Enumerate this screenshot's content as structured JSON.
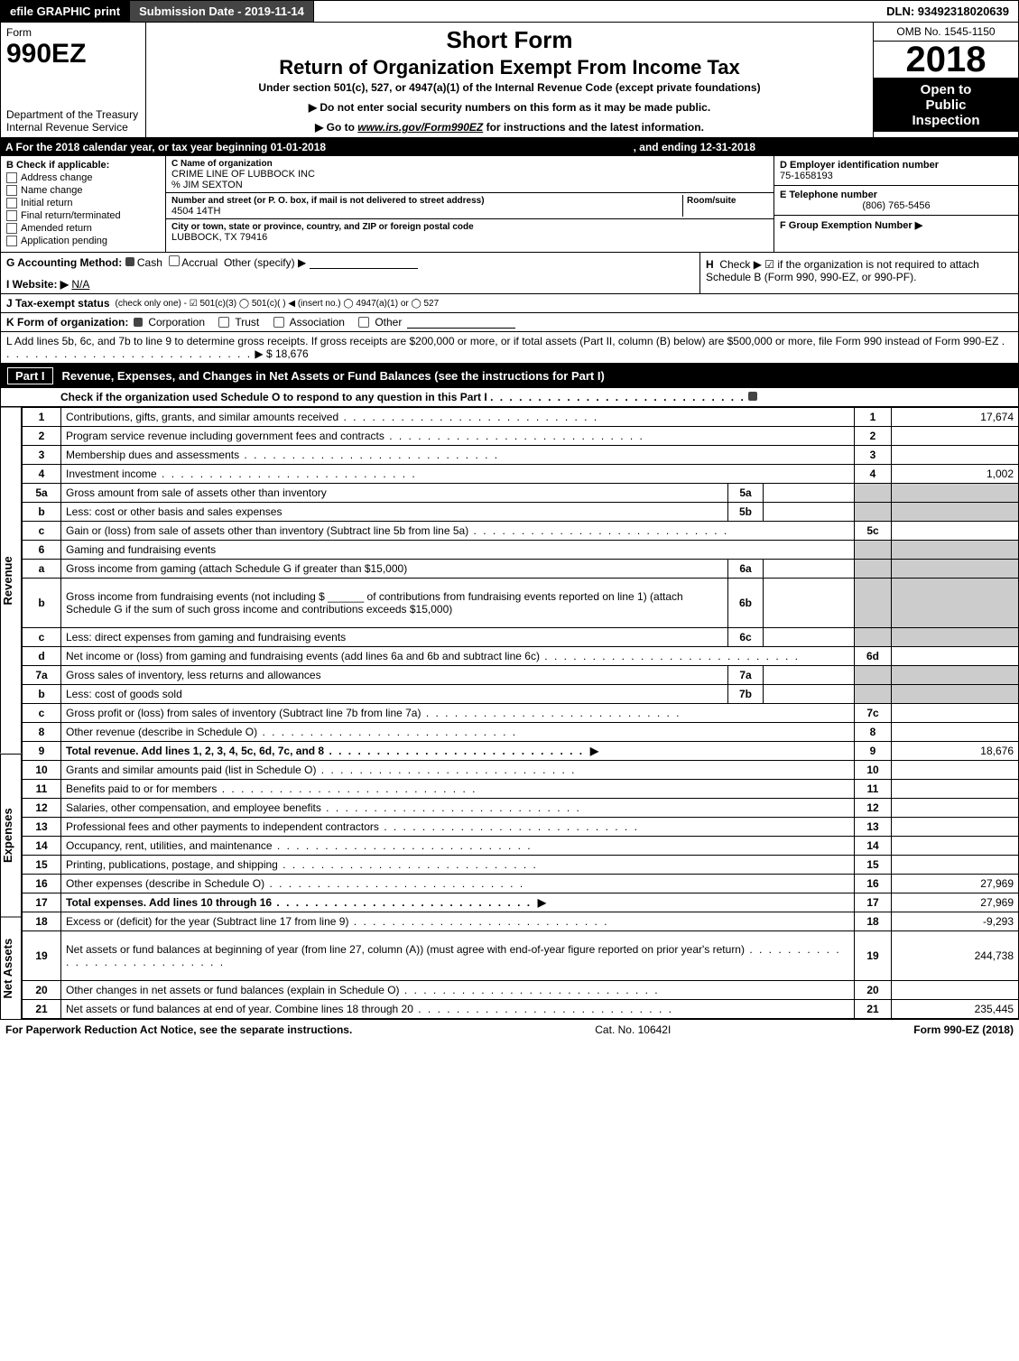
{
  "topbar": {
    "efile": "efile GRAPHIC print",
    "submission": "Submission Date - 2019-11-14",
    "dln": "DLN: 93492318020639"
  },
  "header": {
    "form_label": "Form",
    "form_number": "990EZ",
    "dept1": "Department of the Treasury",
    "dept2": "Internal Revenue Service",
    "short_form": "Short Form",
    "title": "Return of Organization Exempt From Income Tax",
    "subtitle": "Under section 501(c), 527, or 4947(a)(1) of the Internal Revenue Code (except private foundations)",
    "note1": "▶ Do not enter social security numbers on this form as it may be made public.",
    "note2_pre": "▶ Go to ",
    "note2_link": "www.irs.gov/Form990EZ",
    "note2_post": " for instructions and the latest information.",
    "omb": "OMB No. 1545-1150",
    "year": "2018",
    "inspection1": "Open to",
    "inspection2": "Public",
    "inspection3": "Inspection"
  },
  "period": {
    "label_a": "A  For the 2018 calendar year, or tax year beginning 01-01-2018",
    "label_b": ", and ending 12-31-2018"
  },
  "box_b": {
    "heading": "B  Check if applicable:",
    "items": [
      "Address change",
      "Name change",
      "Initial return",
      "Final return/terminated",
      "Amended return",
      "Application pending"
    ]
  },
  "box_c": {
    "name_lbl": "C Name of organization",
    "name": "CRIME LINE OF LUBBOCK INC",
    "care_of": "% JIM SEXTON",
    "street_lbl": "Number and street (or P. O. box, if mail is not delivered to street address)",
    "room_lbl": "Room/suite",
    "street": "4504 14TH",
    "city_lbl": "City or town, state or province, country, and ZIP or foreign postal code",
    "city": "LUBBOCK, TX  79416"
  },
  "box_d": {
    "lbl": "D Employer identification number",
    "val": "75-1658193"
  },
  "box_e": {
    "lbl": "E Telephone number",
    "val": "(806) 765-5456"
  },
  "box_f": {
    "lbl": "F Group Exemption Number  ▶",
    "val": ""
  },
  "line_g": {
    "lbl": "G Accounting Method:",
    "opts": [
      "Cash",
      "Accrual",
      "Other (specify) ▶"
    ]
  },
  "line_h": {
    "lbl": "H",
    "text": "Check ▶  ☑  if the organization is not required to attach Schedule B (Form 990, 990-EZ, or 990-PF)."
  },
  "line_i": {
    "lbl": "I Website: ▶",
    "val": "N/A"
  },
  "line_j": {
    "lbl": "J Tax-exempt status",
    "text": "(check only one) - ☑ 501(c)(3)  ◯ 501(c)(  ) ◀ (insert no.)  ◯ 4947(a)(1) or  ◯ 527"
  },
  "line_k": {
    "lbl": "K Form of organization:",
    "opts": [
      "Corporation",
      "Trust",
      "Association",
      "Other"
    ]
  },
  "line_l": {
    "text": "L Add lines 5b, 6c, and 7b to line 9 to determine gross receipts. If gross receipts are $200,000 or more, or if total assets (Part II, column (B) below) are $500,000 or more, file Form 990 instead of Form 990-EZ",
    "arrow": "▶",
    "amount": "$ 18,676"
  },
  "part1": {
    "label": "Part I",
    "title": "Revenue, Expenses, and Changes in Net Assets or Fund Balances (see the instructions for Part I)",
    "check": "Check if the organization used Schedule O to respond to any question in this Part I"
  },
  "sections": {
    "revenue": "Revenue",
    "expenses": "Expenses",
    "netassets": "Net Assets"
  },
  "lines": [
    {
      "s": "rev",
      "n": "1",
      "desc": "Contributions, gifts, grants, and similar amounts received",
      "rn": "1",
      "amt": "17,674"
    },
    {
      "s": "rev",
      "n": "2",
      "desc": "Program service revenue including government fees and contracts",
      "rn": "2",
      "amt": ""
    },
    {
      "s": "rev",
      "n": "3",
      "desc": "Membership dues and assessments",
      "rn": "3",
      "amt": ""
    },
    {
      "s": "rev",
      "n": "4",
      "desc": "Investment income",
      "rn": "4",
      "amt": "1,002"
    },
    {
      "s": "rev",
      "n": "5a",
      "desc": "Gross amount from sale of assets other than inventory",
      "mini": "5a",
      "minival": "",
      "shade": true
    },
    {
      "s": "rev",
      "n": "b",
      "desc": "Less: cost or other basis and sales expenses",
      "mini": "5b",
      "minival": "",
      "shade": true
    },
    {
      "s": "rev",
      "n": "c",
      "desc": "Gain or (loss) from sale of assets other than inventory (Subtract line 5b from line 5a)",
      "rn": "5c",
      "amt": ""
    },
    {
      "s": "rev",
      "n": "6",
      "desc": "Gaming and fundraising events",
      "blank": true,
      "shade": true
    },
    {
      "s": "rev",
      "n": "a",
      "desc": "Gross income from gaming (attach Schedule G if greater than $15,000)",
      "mini": "6a",
      "minival": "",
      "shade": true
    },
    {
      "s": "rev",
      "n": "b",
      "desc": "Gross income from fundraising events (not including $ ______ of contributions from fundraising events reported on line 1) (attach Schedule G if the sum of such gross income and contributions exceeds $15,000)",
      "mini": "6b",
      "minival": "",
      "shade": true,
      "tall": true
    },
    {
      "s": "rev",
      "n": "c",
      "desc": "Less: direct expenses from gaming and fundraising events",
      "mini": "6c",
      "minival": "",
      "shade": true
    },
    {
      "s": "rev",
      "n": "d",
      "desc": "Net income or (loss) from gaming and fundraising events (add lines 6a and 6b and subtract line 6c)",
      "rn": "6d",
      "amt": ""
    },
    {
      "s": "rev",
      "n": "7a",
      "desc": "Gross sales of inventory, less returns and allowances",
      "mini": "7a",
      "minival": "",
      "shade": true
    },
    {
      "s": "rev",
      "n": "b",
      "desc": "Less: cost of goods sold",
      "mini": "7b",
      "minival": "",
      "shade": true
    },
    {
      "s": "rev",
      "n": "c",
      "desc": "Gross profit or (loss) from sales of inventory (Subtract line 7b from line 7a)",
      "rn": "7c",
      "amt": ""
    },
    {
      "s": "rev",
      "n": "8",
      "desc": "Other revenue (describe in Schedule O)",
      "rn": "8",
      "amt": ""
    },
    {
      "s": "rev",
      "n": "9",
      "desc": "Total revenue. Add lines 1, 2, 3, 4, 5c, 6d, 7c, and 8",
      "rn": "9",
      "amt": "18,676",
      "bold": true,
      "arrow": true
    },
    {
      "s": "exp",
      "n": "10",
      "desc": "Grants and similar amounts paid (list in Schedule O)",
      "rn": "10",
      "amt": ""
    },
    {
      "s": "exp",
      "n": "11",
      "desc": "Benefits paid to or for members",
      "rn": "11",
      "amt": ""
    },
    {
      "s": "exp",
      "n": "12",
      "desc": "Salaries, other compensation, and employee benefits",
      "rn": "12",
      "amt": ""
    },
    {
      "s": "exp",
      "n": "13",
      "desc": "Professional fees and other payments to independent contractors",
      "rn": "13",
      "amt": ""
    },
    {
      "s": "exp",
      "n": "14",
      "desc": "Occupancy, rent, utilities, and maintenance",
      "rn": "14",
      "amt": ""
    },
    {
      "s": "exp",
      "n": "15",
      "desc": "Printing, publications, postage, and shipping",
      "rn": "15",
      "amt": ""
    },
    {
      "s": "exp",
      "n": "16",
      "desc": "Other expenses (describe in Schedule O)",
      "rn": "16",
      "amt": "27,969"
    },
    {
      "s": "exp",
      "n": "17",
      "desc": "Total expenses. Add lines 10 through 16",
      "rn": "17",
      "amt": "27,969",
      "bold": true,
      "arrow": true
    },
    {
      "s": "net",
      "n": "18",
      "desc": "Excess or (deficit) for the year (Subtract line 17 from line 9)",
      "rn": "18",
      "amt": "-9,293"
    },
    {
      "s": "net",
      "n": "19",
      "desc": "Net assets or fund balances at beginning of year (from line 27, column (A)) (must agree with end-of-year figure reported on prior year's return)",
      "rn": "19",
      "amt": "244,738",
      "tall": true
    },
    {
      "s": "net",
      "n": "20",
      "desc": "Other changes in net assets or fund balances (explain in Schedule O)",
      "rn": "20",
      "amt": ""
    },
    {
      "s": "net",
      "n": "21",
      "desc": "Net assets or fund balances at end of year. Combine lines 18 through 20",
      "rn": "21",
      "amt": "235,445"
    }
  ],
  "footer": {
    "left": "For Paperwork Reduction Act Notice, see the separate instructions.",
    "mid": "Cat. No. 10642I",
    "right": "Form 990-EZ (2018)"
  },
  "colors": {
    "black": "#000000",
    "shade": "#cccccc",
    "background": "#ffffff"
  }
}
